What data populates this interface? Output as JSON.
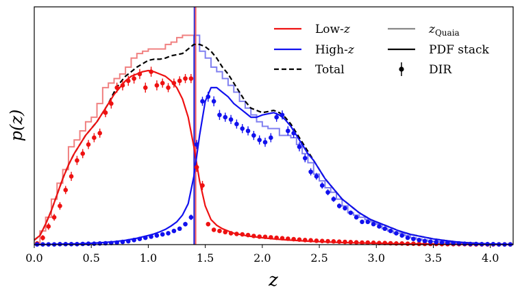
{
  "chart_data": {
    "type": "line",
    "xlabel": "z",
    "ylabel": "p(z)",
    "xlim": [
      0.0,
      4.2
    ],
    "ylim": [
      0.0,
      1.0
    ],
    "xticks": [
      "0.0",
      "0.5",
      "1.0",
      "1.5",
      "2.0",
      "2.5",
      "3.0",
      "3.5",
      "4.0"
    ],
    "xtick_values": [
      0.0,
      0.5,
      1.0,
      1.5,
      2.0,
      2.5,
      3.0,
      3.5,
      4.0
    ],
    "y_ticks_shown": false,
    "legend_position": "upper-right",
    "vline": {
      "name": "z_Quaia split",
      "x": 1.41,
      "colors": [
        "#2222cc",
        "#ff5555"
      ]
    },
    "legend": {
      "low": {
        "prefix": "Low-",
        "var": "z",
        "color": "#ee1111"
      },
      "high": {
        "prefix": "High-",
        "var": "z",
        "color": "#1111ee"
      },
      "total": {
        "label": "Total",
        "color": "#000000"
      },
      "quaia": {
        "var": "z",
        "sub": "Quaia",
        "color": "#888888"
      },
      "pdf": {
        "label": "PDF stack",
        "color": "#000000"
      },
      "dir": {
        "label": "DIR",
        "color": "#000000"
      }
    },
    "series": [
      {
        "name": "Low-z Quaia histogram",
        "kind": "step",
        "color": "#f08080",
        "edges": [
          0.0,
          0.05,
          0.1,
          0.15,
          0.2,
          0.25,
          0.3,
          0.35,
          0.4,
          0.45,
          0.5,
          0.55,
          0.6,
          0.65,
          0.7,
          0.75,
          0.8,
          0.85,
          0.9,
          0.95,
          1.0,
          1.05,
          1.1,
          1.15,
          1.2,
          1.25,
          1.3,
          1.35,
          1.4
        ],
        "values": [
          0.0,
          0.06,
          0.12,
          0.2,
          0.27,
          0.33,
          0.43,
          0.46,
          0.5,
          0.54,
          0.56,
          0.62,
          0.69,
          0.71,
          0.73,
          0.75,
          0.78,
          0.82,
          0.84,
          0.85,
          0.86,
          0.86,
          0.86,
          0.88,
          0.89,
          0.91,
          0.92,
          0.92
        ]
      },
      {
        "name": "High-z Quaia histogram",
        "kind": "step",
        "color": "#8080f0",
        "edges": [
          1.4,
          1.45,
          1.5,
          1.55,
          1.6,
          1.65,
          1.7,
          1.75,
          1.8,
          1.85,
          1.9,
          1.95,
          2.0,
          2.05,
          2.1,
          2.15,
          2.2,
          2.25,
          2.3,
          2.35,
          2.4,
          2.45,
          2.5,
          2.55,
          2.6,
          2.65,
          2.7,
          2.75,
          2.8,
          2.85,
          2.9,
          2.95,
          3.0,
          3.05,
          3.1,
          3.15,
          3.2,
          3.25,
          3.3,
          3.35,
          3.4,
          3.45,
          3.5,
          3.55,
          3.6,
          3.65,
          3.7,
          3.75,
          3.8,
          3.85,
          3.9,
          3.95,
          4.0,
          4.05,
          4.1,
          4.15,
          4.2
        ],
        "values": [
          0.92,
          0.85,
          0.82,
          0.78,
          0.76,
          0.73,
          0.7,
          0.67,
          0.63,
          0.6,
          0.57,
          0.54,
          0.52,
          0.51,
          0.51,
          0.48,
          0.48,
          0.47,
          0.44,
          0.4,
          0.36,
          0.31,
          0.28,
          0.25,
          0.23,
          0.2,
          0.17,
          0.14,
          0.13,
          0.12,
          0.11,
          0.1,
          0.09,
          0.07,
          0.06,
          0.05,
          0.05,
          0.04,
          0.03,
          0.025,
          0.02,
          0.015,
          0.013,
          0.011,
          0.009,
          0.008,
          0.006,
          0.005,
          0.004,
          0.004,
          0.003,
          0.003,
          0.002,
          0.002,
          0.001,
          0.001
        ]
      },
      {
        "name": "Total",
        "kind": "line",
        "style": "dashed",
        "color": "#000000",
        "x": [
          0.0,
          0.05,
          0.1,
          0.15,
          0.2,
          0.25,
          0.3,
          0.35,
          0.4,
          0.45,
          0.5,
          0.55,
          0.6,
          0.65,
          0.7,
          0.75,
          0.8,
          0.85,
          0.9,
          0.95,
          1.0,
          1.05,
          1.1,
          1.15,
          1.2,
          1.25,
          1.3,
          1.35,
          1.4,
          1.45,
          1.5,
          1.55,
          1.6,
          1.65,
          1.7,
          1.75,
          1.8,
          1.85,
          1.9,
          1.95,
          2.0,
          2.05,
          2.1,
          2.15,
          2.2,
          2.25,
          2.3,
          2.35,
          2.4,
          2.45,
          2.5,
          2.55,
          2.6,
          2.65,
          2.7,
          2.75,
          2.8,
          2.85,
          2.9,
          2.95,
          3.0,
          3.1,
          3.2,
          3.3,
          3.4,
          3.5,
          3.6,
          3.7,
          3.8,
          3.9,
          4.0,
          4.1,
          4.2
        ],
        "y": [
          0.02,
          0.04,
          0.09,
          0.15,
          0.22,
          0.29,
          0.35,
          0.4,
          0.44,
          0.48,
          0.51,
          0.54,
          0.58,
          0.62,
          0.67,
          0.71,
          0.74,
          0.76,
          0.78,
          0.795,
          0.81,
          0.815,
          0.815,
          0.82,
          0.83,
          0.835,
          0.84,
          0.86,
          0.88,
          0.88,
          0.87,
          0.85,
          0.82,
          0.78,
          0.75,
          0.71,
          0.67,
          0.63,
          0.6,
          0.59,
          0.58,
          0.585,
          0.59,
          0.58,
          0.56,
          0.53,
          0.49,
          0.45,
          0.41,
          0.37,
          0.33,
          0.29,
          0.26,
          0.23,
          0.2,
          0.18,
          0.16,
          0.14,
          0.125,
          0.11,
          0.1,
          0.08,
          0.06,
          0.045,
          0.035,
          0.025,
          0.018,
          0.012,
          0.008,
          0.005,
          0.003,
          0.002,
          0.001
        ]
      },
      {
        "name": "Low-z PDF stack",
        "kind": "line",
        "color": "#ee1111",
        "x": [
          0.0,
          0.05,
          0.1,
          0.15,
          0.2,
          0.25,
          0.3,
          0.35,
          0.4,
          0.45,
          0.5,
          0.55,
          0.6,
          0.65,
          0.7,
          0.75,
          0.8,
          0.85,
          0.9,
          0.95,
          1.0,
          1.05,
          1.1,
          1.15,
          1.2,
          1.25,
          1.3,
          1.35,
          1.4,
          1.45,
          1.5,
          1.55,
          1.6,
          1.65,
          1.7,
          1.75,
          1.8,
          1.85,
          1.9,
          2.0,
          2.1,
          2.2,
          2.3,
          2.4,
          2.5,
          2.6,
          2.7,
          2.8,
          2.9,
          3.0,
          3.2,
          3.4,
          3.6,
          3.8,
          4.0,
          4.2
        ],
        "y": [
          0.02,
          0.04,
          0.09,
          0.15,
          0.22,
          0.29,
          0.35,
          0.4,
          0.44,
          0.48,
          0.51,
          0.54,
          0.58,
          0.62,
          0.66,
          0.69,
          0.72,
          0.74,
          0.75,
          0.76,
          0.765,
          0.76,
          0.75,
          0.74,
          0.72,
          0.69,
          0.64,
          0.56,
          0.43,
          0.28,
          0.17,
          0.11,
          0.085,
          0.07,
          0.06,
          0.05,
          0.045,
          0.04,
          0.036,
          0.03,
          0.025,
          0.021,
          0.018,
          0.015,
          0.013,
          0.011,
          0.009,
          0.008,
          0.007,
          0.006,
          0.004,
          0.003,
          0.002,
          0.001,
          0.001,
          0.001
        ]
      },
      {
        "name": "High-z PDF stack",
        "kind": "line",
        "color": "#1111ee",
        "x": [
          0.0,
          0.1,
          0.2,
          0.3,
          0.4,
          0.5,
          0.6,
          0.7,
          0.8,
          0.9,
          1.0,
          1.05,
          1.1,
          1.15,
          1.2,
          1.25,
          1.3,
          1.35,
          1.4,
          1.45,
          1.5,
          1.55,
          1.6,
          1.65,
          1.7,
          1.75,
          1.8,
          1.85,
          1.9,
          1.95,
          2.0,
          2.05,
          2.1,
          2.15,
          2.2,
          2.25,
          2.3,
          2.35,
          2.4,
          2.45,
          2.5,
          2.55,
          2.6,
          2.65,
          2.7,
          2.75,
          2.8,
          2.85,
          2.9,
          2.95,
          3.0,
          3.1,
          3.2,
          3.3,
          3.4,
          3.5,
          3.6,
          3.7,
          3.8,
          3.9,
          4.0,
          4.1,
          4.2
        ],
        "y": [
          0.0,
          0.001,
          0.002,
          0.003,
          0.004,
          0.006,
          0.009,
          0.013,
          0.019,
          0.028,
          0.04,
          0.047,
          0.056,
          0.067,
          0.082,
          0.1,
          0.13,
          0.18,
          0.3,
          0.48,
          0.63,
          0.69,
          0.69,
          0.67,
          0.65,
          0.62,
          0.6,
          0.58,
          0.56,
          0.56,
          0.57,
          0.575,
          0.58,
          0.57,
          0.55,
          0.52,
          0.48,
          0.44,
          0.4,
          0.37,
          0.33,
          0.29,
          0.26,
          0.23,
          0.2,
          0.18,
          0.16,
          0.14,
          0.125,
          0.11,
          0.1,
          0.08,
          0.06,
          0.045,
          0.035,
          0.025,
          0.018,
          0.012,
          0.008,
          0.005,
          0.003,
          0.002,
          0.001
        ]
      }
    ],
    "dir_points": [
      {
        "name": "Low-z DIR",
        "color": "#ee1111",
        "x": [
          0.025,
          0.075,
          0.125,
          0.175,
          0.225,
          0.275,
          0.325,
          0.375,
          0.425,
          0.475,
          0.525,
          0.575,
          0.625,
          0.675,
          0.725,
          0.775,
          0.825,
          0.875,
          0.925,
          0.975,
          1.025,
          1.075,
          1.125,
          1.175,
          1.225,
          1.275,
          1.325,
          1.375,
          1.425,
          1.475,
          1.525,
          1.575,
          1.625,
          1.675,
          1.725,
          1.775,
          1.825,
          1.875,
          1.925,
          1.975,
          2.025,
          2.075,
          2.125,
          2.175,
          2.225,
          2.275,
          2.325,
          2.375,
          2.425,
          2.475,
          2.525,
          2.575,
          2.625,
          2.675,
          2.725,
          2.775,
          2.825,
          2.875,
          2.925,
          2.975,
          3.025,
          3.075,
          3.125,
          3.175,
          3.225,
          3.275,
          3.325,
          3.375,
          3.425,
          3.475,
          3.525,
          3.575,
          3.625,
          3.675,
          3.725,
          3.775,
          3.825,
          3.875,
          3.925,
          3.975,
          4.025,
          4.075,
          4.125,
          4.175
        ],
        "y": [
          0.005,
          0.03,
          0.08,
          0.12,
          0.17,
          0.24,
          0.3,
          0.37,
          0.4,
          0.44,
          0.47,
          0.49,
          0.58,
          0.62,
          0.69,
          0.7,
          0.72,
          0.73,
          0.75,
          0.69,
          0.76,
          0.7,
          0.71,
          0.69,
          0.71,
          0.72,
          0.73,
          0.73,
          0.34,
          0.26,
          0.09,
          0.065,
          0.06,
          0.055,
          0.05,
          0.047,
          0.045,
          0.042,
          0.038,
          0.035,
          0.034,
          0.032,
          0.03,
          0.028,
          0.026,
          0.024,
          0.022,
          0.02,
          0.019,
          0.017,
          0.016,
          0.015,
          0.014,
          0.013,
          0.012,
          0.011,
          0.01,
          0.009,
          0.009,
          0.008,
          0.007,
          0.007,
          0.006,
          0.005,
          0.005,
          0.004,
          0.004,
          0.003,
          0.003,
          0.003,
          0.003,
          0.002,
          0.002,
          0.002,
          0.002,
          0.002,
          0.001,
          0.001,
          0.001,
          0.001,
          0.001,
          0.001,
          0.001,
          0.001
        ],
        "err": [
          0.01,
          0.012,
          0.015,
          0.015,
          0.017,
          0.018,
          0.02,
          0.02,
          0.02,
          0.02,
          0.02,
          0.02,
          0.02,
          0.022,
          0.022,
          0.022,
          0.022,
          0.022,
          0.022,
          0.022,
          0.022,
          0.022,
          0.02,
          0.02,
          0.02,
          0.02,
          0.02,
          0.02,
          0.02,
          0.02,
          0.01,
          0.008,
          0.008,
          0.008,
          0.007,
          0.007,
          0.007,
          0.007,
          0.006,
          0.006,
          0.006,
          0.006,
          0.006,
          0.005,
          0.005,
          0.005,
          0.005,
          0.005,
          0.004,
          0.004,
          0.004,
          0.004,
          0.004,
          0.004,
          0.004,
          0.003,
          0.003,
          0.003,
          0.003,
          0.003,
          0.003,
          0.003,
          0.003,
          0.003,
          0.002,
          0.002,
          0.002,
          0.002,
          0.002,
          0.002,
          0.002,
          0.002,
          0.002,
          0.002,
          0.002,
          0.002,
          0.001,
          0.001,
          0.001,
          0.001,
          0.001,
          0.001,
          0.001,
          0.001
        ]
      },
      {
        "name": "High-z DIR",
        "color": "#1111ee",
        "x": [
          0.025,
          0.075,
          0.125,
          0.175,
          0.225,
          0.275,
          0.325,
          0.375,
          0.425,
          0.475,
          0.525,
          0.575,
          0.625,
          0.675,
          0.725,
          0.775,
          0.825,
          0.875,
          0.925,
          0.975,
          1.025,
          1.075,
          1.125,
          1.175,
          1.225,
          1.275,
          1.325,
          1.375,
          1.425,
          1.475,
          1.525,
          1.575,
          1.625,
          1.675,
          1.725,
          1.775,
          1.825,
          1.875,
          1.925,
          1.975,
          2.025,
          2.075,
          2.125,
          2.175,
          2.225,
          2.275,
          2.325,
          2.375,
          2.425,
          2.475,
          2.525,
          2.575,
          2.625,
          2.675,
          2.725,
          2.775,
          2.825,
          2.875,
          2.925,
          2.975,
          3.025,
          3.075,
          3.125,
          3.175,
          3.225,
          3.275,
          3.325,
          3.375,
          3.425,
          3.475,
          3.525,
          3.575,
          3.625,
          3.675,
          3.725,
          3.775,
          3.825,
          3.875,
          3.925,
          3.975,
          4.025,
          4.075,
          4.125,
          4.175
        ],
        "y": [
          0.001,
          0.001,
          0.001,
          0.001,
          0.002,
          0.002,
          0.002,
          0.002,
          0.003,
          0.004,
          0.004,
          0.005,
          0.006,
          0.007,
          0.009,
          0.012,
          0.015,
          0.02,
          0.025,
          0.03,
          0.035,
          0.04,
          0.045,
          0.05,
          0.06,
          0.07,
          0.09,
          0.12,
          0.44,
          0.63,
          0.65,
          0.63,
          0.57,
          0.56,
          0.55,
          0.53,
          0.51,
          0.5,
          0.48,
          0.46,
          0.45,
          0.47,
          0.56,
          0.57,
          0.5,
          0.49,
          0.43,
          0.38,
          0.32,
          0.3,
          0.26,
          0.23,
          0.2,
          0.17,
          0.16,
          0.14,
          0.12,
          0.1,
          0.1,
          0.09,
          0.08,
          0.07,
          0.06,
          0.05,
          0.04,
          0.03,
          0.025,
          0.02,
          0.016,
          0.013,
          0.011,
          0.009,
          0.007,
          0.006,
          0.005,
          0.004,
          0.003,
          0.003,
          0.002,
          0.002,
          0.002,
          0.001,
          0.001,
          0.001
        ],
        "err": [
          0.001,
          0.001,
          0.001,
          0.001,
          0.001,
          0.001,
          0.001,
          0.001,
          0.002,
          0.002,
          0.002,
          0.002,
          0.003,
          0.003,
          0.003,
          0.004,
          0.004,
          0.005,
          0.005,
          0.006,
          0.006,
          0.007,
          0.007,
          0.008,
          0.008,
          0.009,
          0.01,
          0.012,
          0.02,
          0.02,
          0.022,
          0.022,
          0.022,
          0.02,
          0.02,
          0.02,
          0.02,
          0.02,
          0.02,
          0.02,
          0.02,
          0.02,
          0.02,
          0.02,
          0.02,
          0.02,
          0.02,
          0.018,
          0.016,
          0.015,
          0.014,
          0.013,
          0.012,
          0.011,
          0.01,
          0.009,
          0.008,
          0.008,
          0.007,
          0.007,
          0.006,
          0.006,
          0.005,
          0.005,
          0.004,
          0.004,
          0.003,
          0.003,
          0.003,
          0.002,
          0.002,
          0.002,
          0.002,
          0.002,
          0.002,
          0.001,
          0.001,
          0.001,
          0.001,
          0.001,
          0.001,
          0.001,
          0.001,
          0.001
        ]
      }
    ]
  }
}
